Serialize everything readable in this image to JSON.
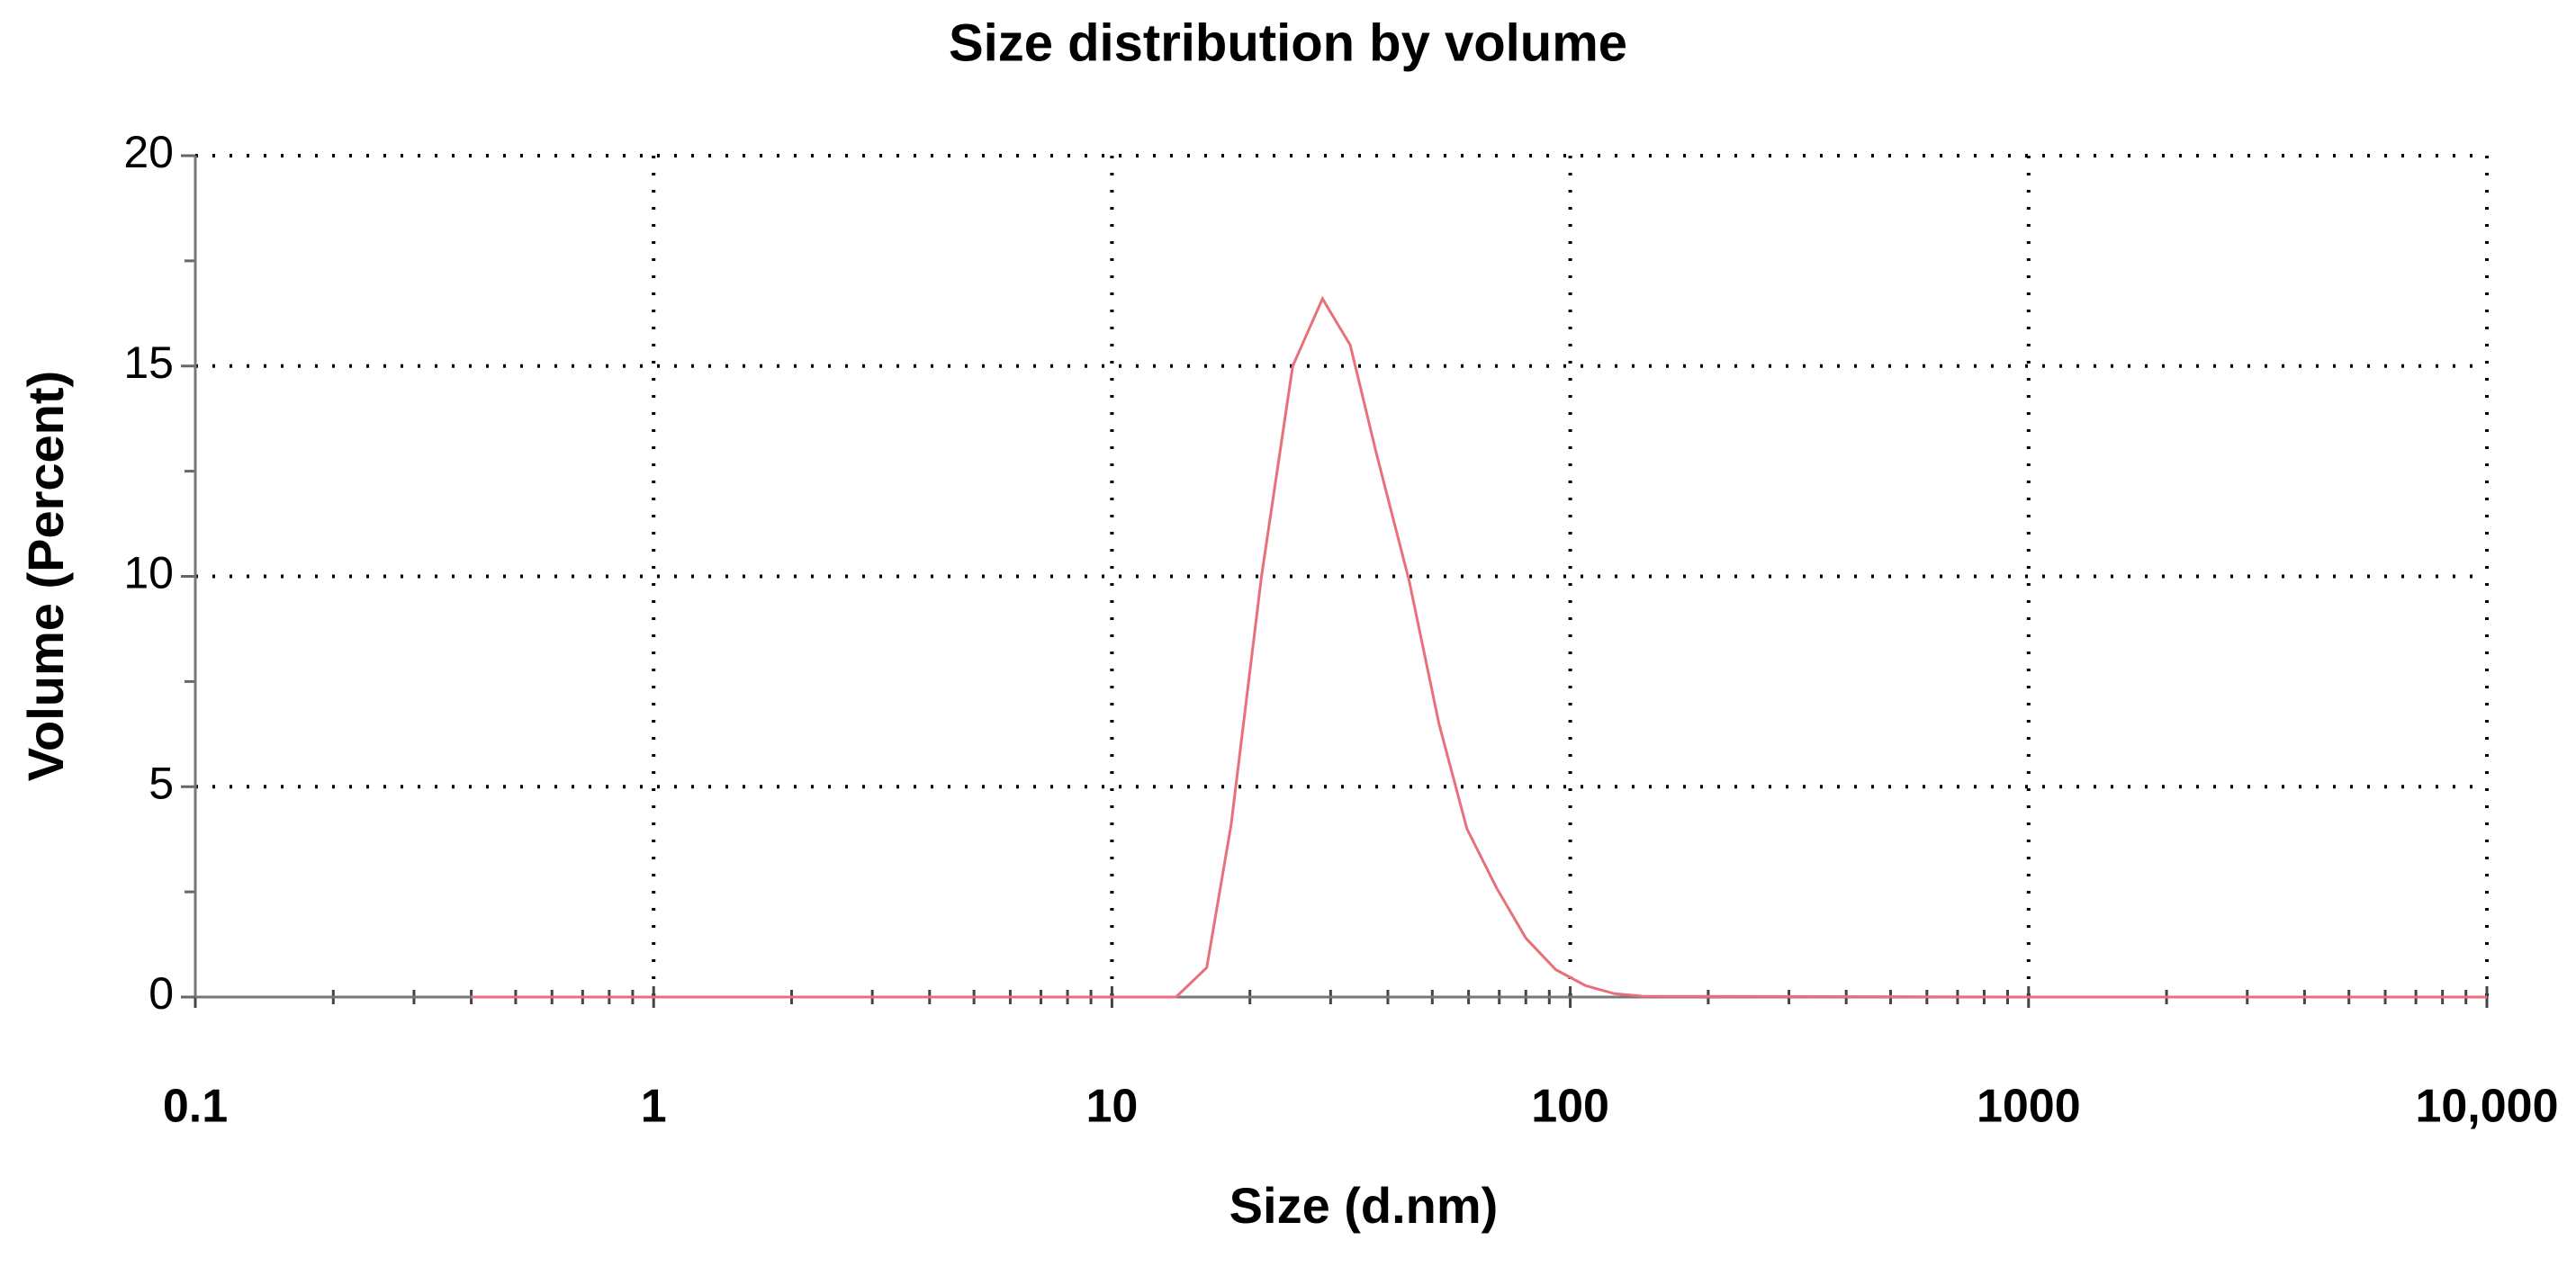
{
  "chart_data": {
    "type": "line",
    "title": "Size distribution by volume",
    "x_label": "Size (d.nm)",
    "y_label": "Volume (Percent)",
    "x_scale": "log",
    "grid": true,
    "minor_ticks": true,
    "x": [
      0.4,
      1,
      10,
      13.8,
      16.1,
      18.2,
      21.2,
      24.8,
      28.8,
      33.1,
      37.8,
      44.5,
      51.7,
      59.5,
      69,
      80,
      93,
      108,
      125,
      144,
      1000,
      10000
    ],
    "series": [
      {
        "color": "#e8707a",
        "values": [
          0,
          0,
          0,
          0,
          0.7,
          4.1,
          10,
          15,
          16.6,
          15.5,
          12.9,
          9.9,
          6.5,
          4.0,
          2.6,
          1.4,
          0.65,
          0.27,
          0.08,
          0.02,
          0,
          0
        ]
      }
    ],
    "xlim": [
      0.1,
      10000
    ],
    "xticks": [
      0.1,
      1,
      10,
      100,
      1000,
      {
        "value": 10000,
        "label": "10,000"
      }
    ],
    "ylim": [
      0,
      20
    ],
    "yticks": [
      0,
      5,
      10,
      15,
      20
    ]
  }
}
